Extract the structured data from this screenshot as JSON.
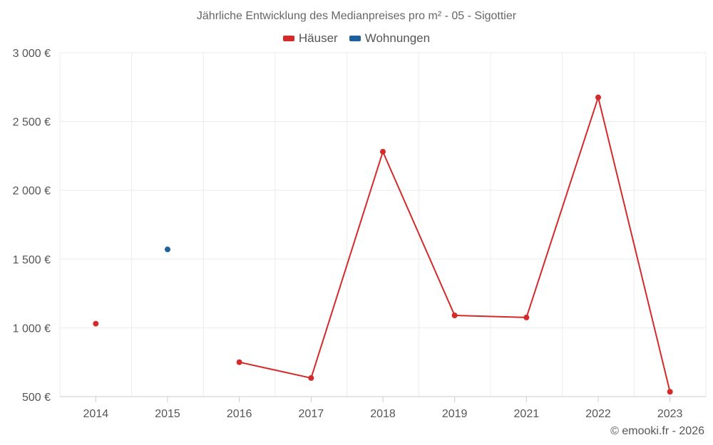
{
  "chart_data": {
    "type": "line",
    "title": "Jährliche Entwicklung des Medianpreises pro m² - 05 - Sigottier",
    "categories": [
      "2014",
      "2015",
      "2016",
      "2017",
      "2018",
      "2019",
      "2021",
      "2022",
      "2023"
    ],
    "series": [
      {
        "name": "Häuser",
        "color": "#d42a2a",
        "values": [
          1030,
          null,
          750,
          635,
          2280,
          1090,
          1075,
          2675,
          535
        ]
      },
      {
        "name": "Wohnungen",
        "color": "#1f5f9e",
        "values": [
          null,
          1570,
          null,
          null,
          null,
          null,
          null,
          null,
          null
        ]
      }
    ],
    "yticks": [
      500,
      1000,
      1500,
      2000,
      2500,
      3000
    ],
    "ytick_labels": [
      "500 €",
      "1 000 €",
      "1 500 €",
      "2 000 €",
      "2 500 €",
      "3 000 €"
    ],
    "ylim": [
      500,
      3000
    ],
    "grid": true,
    "legend": "top-center",
    "xlabel": "",
    "ylabel": ""
  },
  "credit": "© emooki.fr - 2026"
}
